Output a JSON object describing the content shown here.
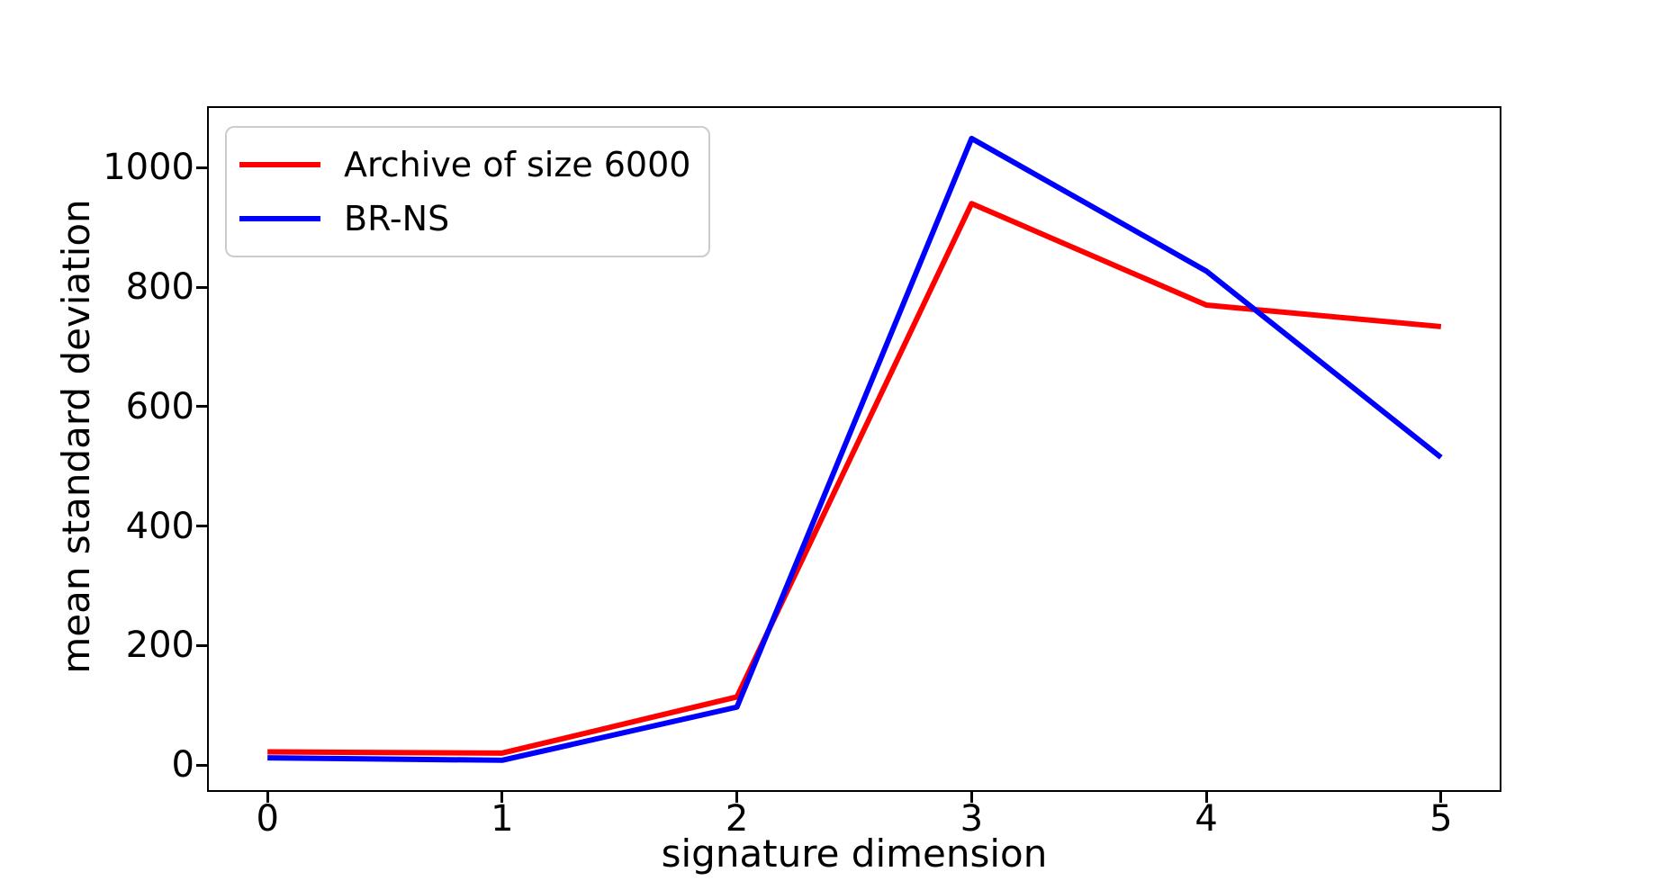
{
  "chart_data": {
    "type": "line",
    "title": "",
    "xlabel": "signature dimension",
    "ylabel": "mean standard deviation",
    "x": [
      0,
      1,
      2,
      3,
      4,
      5
    ],
    "series": [
      {
        "name": "Archive of size 6000",
        "color": "#ff0000",
        "values": [
          22,
          20,
          114,
          940,
          770,
          734
        ]
      },
      {
        "name": "BR-NS",
        "color": "#0000ff",
        "values": [
          12,
          8,
          97,
          1049,
          827,
          515
        ]
      }
    ],
    "xticks": [
      "0",
      "1",
      "2",
      "3",
      "4",
      "5"
    ],
    "xtick_values": [
      0,
      1,
      2,
      3,
      4,
      5
    ],
    "yticks": [
      "0",
      "200",
      "400",
      "600",
      "800",
      "1000"
    ],
    "ytick_values": [
      0,
      200,
      400,
      600,
      800,
      1000
    ],
    "xlim": [
      -0.25,
      5.25
    ],
    "ylim": [
      -42,
      1100
    ],
    "grid": false,
    "legend_position": "upper left",
    "line_width": 6,
    "background": "#ffffff",
    "axis_color": "#000000"
  }
}
